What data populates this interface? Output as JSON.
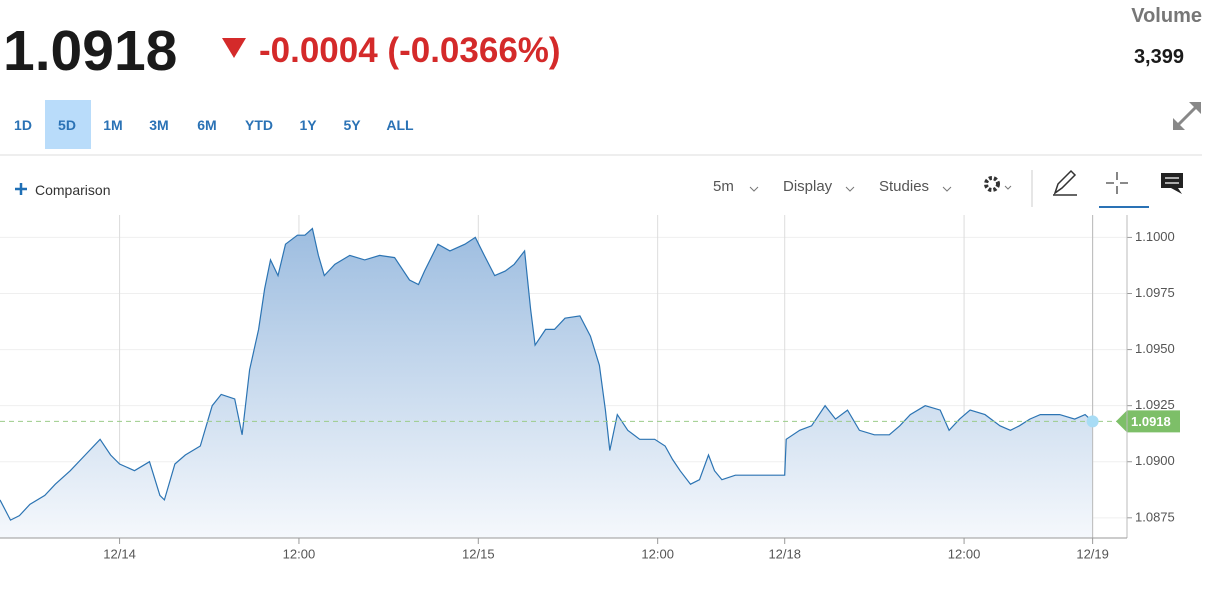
{
  "header": {
    "price": "1.0918",
    "change": "-0.0004 (-0.0366%)",
    "volume_label": "Volume",
    "volume": "3,399"
  },
  "tabs": [
    "1D",
    "5D",
    "1M",
    "3M",
    "6M",
    "YTD",
    "1Y",
    "5Y",
    "ALL"
  ],
  "toolbar": {
    "comparison": "Comparison",
    "interval": "5m",
    "display": "Display",
    "studies": "Studies"
  },
  "chart_data": {
    "type": "area",
    "color": "#2c74b3",
    "x": [
      0,
      0.7,
      1.3,
      2.0,
      3.0,
      3.7,
      4.7,
      5.7,
      6.7,
      7.4,
      8.0,
      9.0,
      10.0,
      10.7,
      11.0,
      11.7,
      12.4,
      13.4,
      14.2,
      14.8,
      15.7,
      16.2,
      16.7,
      17.3,
      17.7,
      18.1,
      18.6,
      19.1,
      19.9,
      20.4,
      20.9,
      21.3,
      21.7,
      22.4,
      23.4,
      24.4,
      25.4,
      26.4,
      27.4,
      28.0,
      28.4,
      29.3,
      30.1,
      31.1,
      31.8,
      32.4,
      33.1,
      33.8,
      34.4,
      35.1,
      35.5,
      35.8,
      36.5,
      37.1,
      37.8,
      38.8,
      39.5,
      40.1,
      40.5,
      40.8,
      41.3,
      42.0,
      42.8,
      43.8,
      44.5,
      45.0,
      45.5,
      46.2,
      46.8,
      47.4,
      47.8,
      48.3,
      49.2,
      52.5,
      52.6,
      53.5,
      54.3,
      55.2,
      55.9,
      56.7,
      57.5,
      58.5,
      59.5,
      60.2,
      60.9,
      61.9,
      62.9,
      63.5,
      64.2,
      64.9,
      65.9,
      66.9,
      67.6,
      68.2,
      68.9,
      69.6,
      70.9,
      71.9,
      72.6,
      73.1
    ],
    "values": [
      1.0883,
      1.0874,
      1.0876,
      1.0881,
      1.0885,
      1.089,
      1.0896,
      1.0903,
      1.091,
      1.0903,
      1.0899,
      1.0896,
      1.09,
      1.0885,
      1.0883,
      1.0899,
      1.0903,
      1.0907,
      1.0925,
      1.093,
      1.0928,
      1.0912,
      1.0941,
      1.0959,
      1.0977,
      1.099,
      1.0983,
      1.0997,
      1.1001,
      1.1001,
      1.1004,
      1.0992,
      1.0983,
      1.0988,
      1.0992,
      1.099,
      1.0992,
      1.0991,
      1.0981,
      1.0979,
      1.0985,
      1.0997,
      1.0994,
      1.0997,
      1.1,
      1.0992,
      1.0983,
      1.0985,
      1.0988,
      1.0994,
      1.0968,
      1.0952,
      1.0959,
      1.0959,
      1.0964,
      1.0965,
      1.0956,
      1.0943,
      1.0923,
      1.0905,
      1.0921,
      1.0914,
      1.091,
      1.091,
      1.0907,
      1.0901,
      1.0896,
      1.089,
      1.0892,
      1.0903,
      1.0896,
      1.0892,
      1.0894,
      1.0894,
      1.091,
      1.0914,
      1.0916,
      1.0925,
      1.0919,
      1.0923,
      1.0914,
      1.0912,
      1.0912,
      1.0916,
      1.0921,
      1.0925,
      1.0923,
      1.0914,
      1.0919,
      1.0923,
      1.0921,
      1.0916,
      1.0914,
      1.0916,
      1.0919,
      1.0921,
      1.0921,
      1.0919,
      1.0921,
      1.0918
    ],
    "xlim": [
      0,
      75.4
    ],
    "xticks": [
      {
        "value": 8.0,
        "label": "12/14"
      },
      {
        "value": 20.0,
        "label": "12:00"
      },
      {
        "value": 32.0,
        "label": "12/15"
      },
      {
        "value": 44.0,
        "label": "12:00"
      },
      {
        "value": 52.5,
        "label": "12/18"
      },
      {
        "value": 64.5,
        "label": "12:00"
      },
      {
        "value": 73.1,
        "label": "12/19"
      }
    ],
    "ylim": [
      1.0866,
      1.101
    ],
    "yticks": [
      1.0875,
      {
        "value": 1.09,
        "label": "1.0900"
      },
      1.0925,
      {
        "value": 1.095,
        "label": "1.0950"
      },
      1.0975,
      {
        "value": 1.1,
        "label": "1.1000"
      }
    ],
    "grid": true
  }
}
